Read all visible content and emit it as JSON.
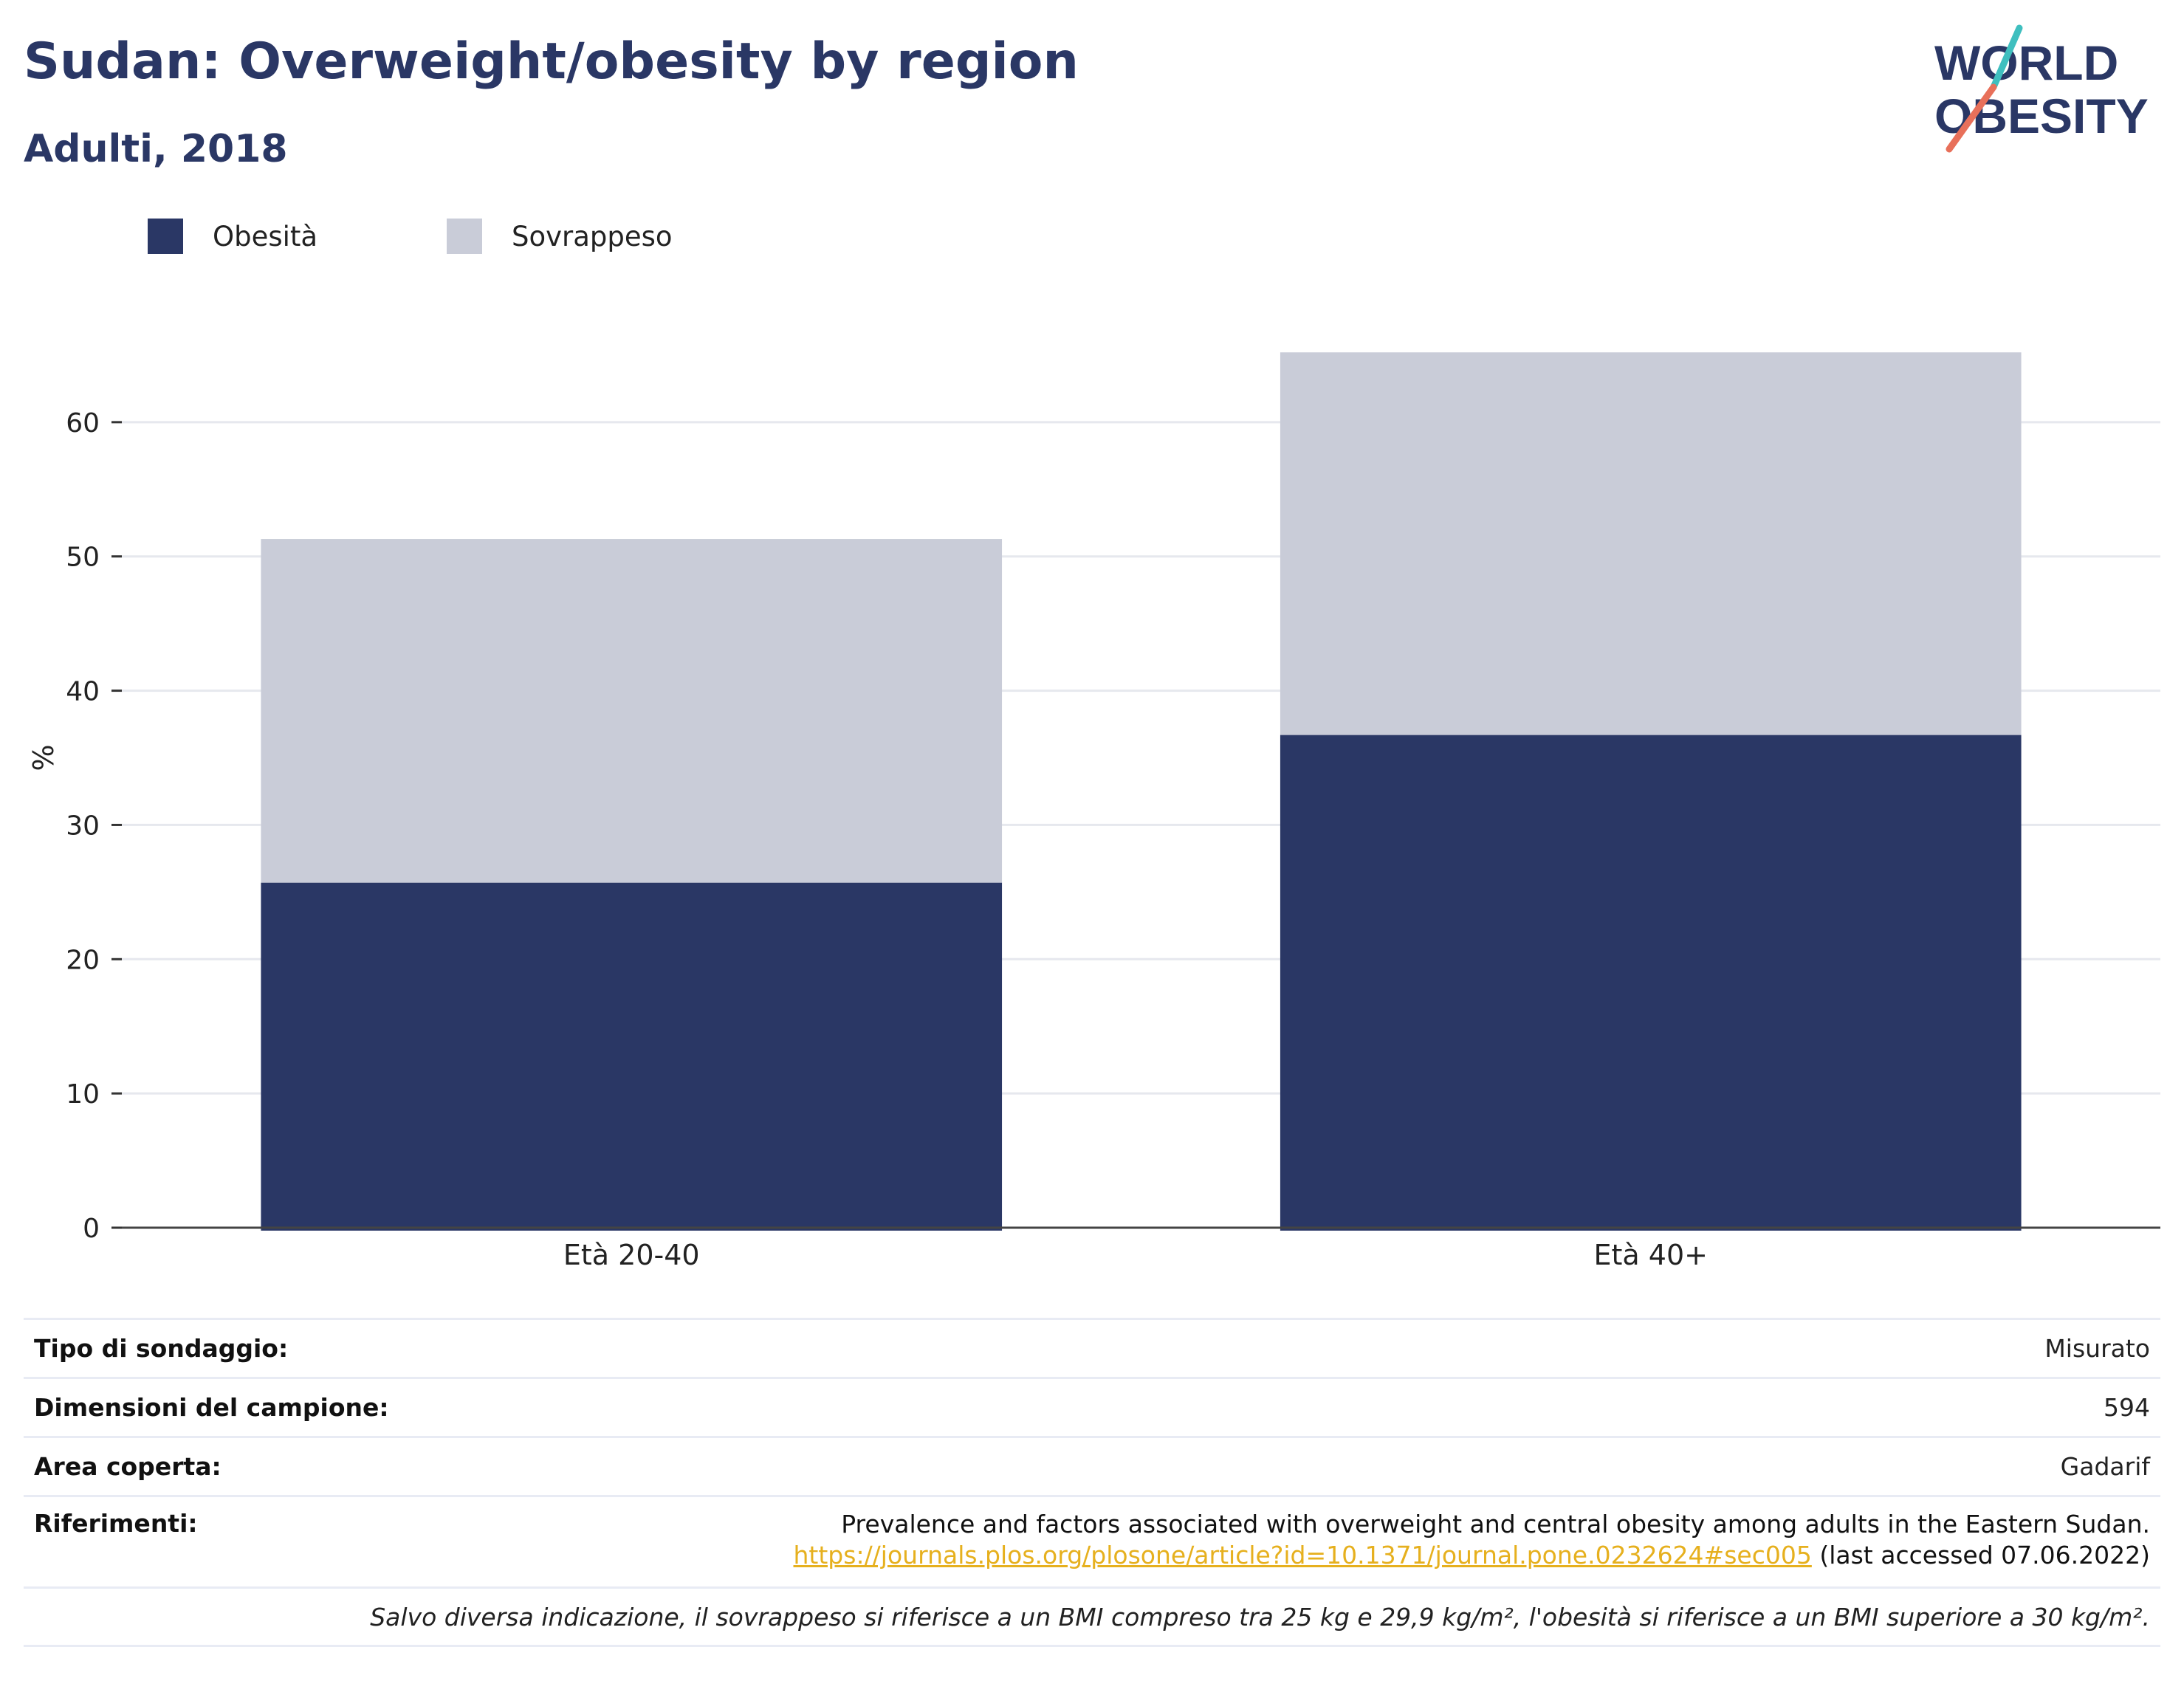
{
  "header": {
    "title": "Sudan: Overweight/obesity by region",
    "subtitle": "Adulti, 2018"
  },
  "logo": {
    "line1": "WORLD",
    "line2": "OBESITY"
  },
  "colors": {
    "obesity": "#2a3765",
    "overweight": "#c9ccd8",
    "title": "#2a3765",
    "link": "#e6b01e",
    "logo_teal": "#3fbfbf",
    "logo_coral": "#e8705a"
  },
  "legend": [
    {
      "label": "Obesità",
      "color": "#2a3765"
    },
    {
      "label": "Sovrappeso",
      "color": "#c9ccd8"
    }
  ],
  "chart_data": {
    "type": "bar",
    "stacked": true,
    "categories": [
      "Età 20-40",
      "Età 40+"
    ],
    "series": [
      {
        "name": "Obesità",
        "values": [
          25.7,
          36.7
        ],
        "color": "#2a3765"
      },
      {
        "name": "Sovrappeso",
        "values": [
          25.6,
          28.5
        ],
        "color": "#c9ccd8"
      }
    ],
    "ylabel": "%",
    "ylim": [
      0,
      70
    ],
    "yticks": [
      0,
      10,
      20,
      30,
      40,
      50,
      60
    ],
    "grid": true,
    "legend_position": "top-left"
  },
  "info": {
    "survey_type": {
      "label": "Tipo di sondaggio:",
      "value": "Misurato"
    },
    "sample_size": {
      "label": "Dimensioni del campione:",
      "value": "594"
    },
    "area": {
      "label": "Area coperta:",
      "value": "Gadarif"
    },
    "references": {
      "label": "Riferimenti:",
      "text": "Prevalence and factors associated with overweight and central obesity among adults in the Eastern Sudan.",
      "link": "https://journals.plos.org/plosone/article?id=10.1371/journal.pone.0232624#sec005",
      "accessed": "(last accessed 07.06.2022)"
    },
    "footnote": "Salvo diversa indicazione, il sovrappeso si riferisce a un BMI compreso tra 25 kg e 29,9 kg/m², l'obesità si riferisce a un BMI superiore a 30 kg/m²."
  }
}
